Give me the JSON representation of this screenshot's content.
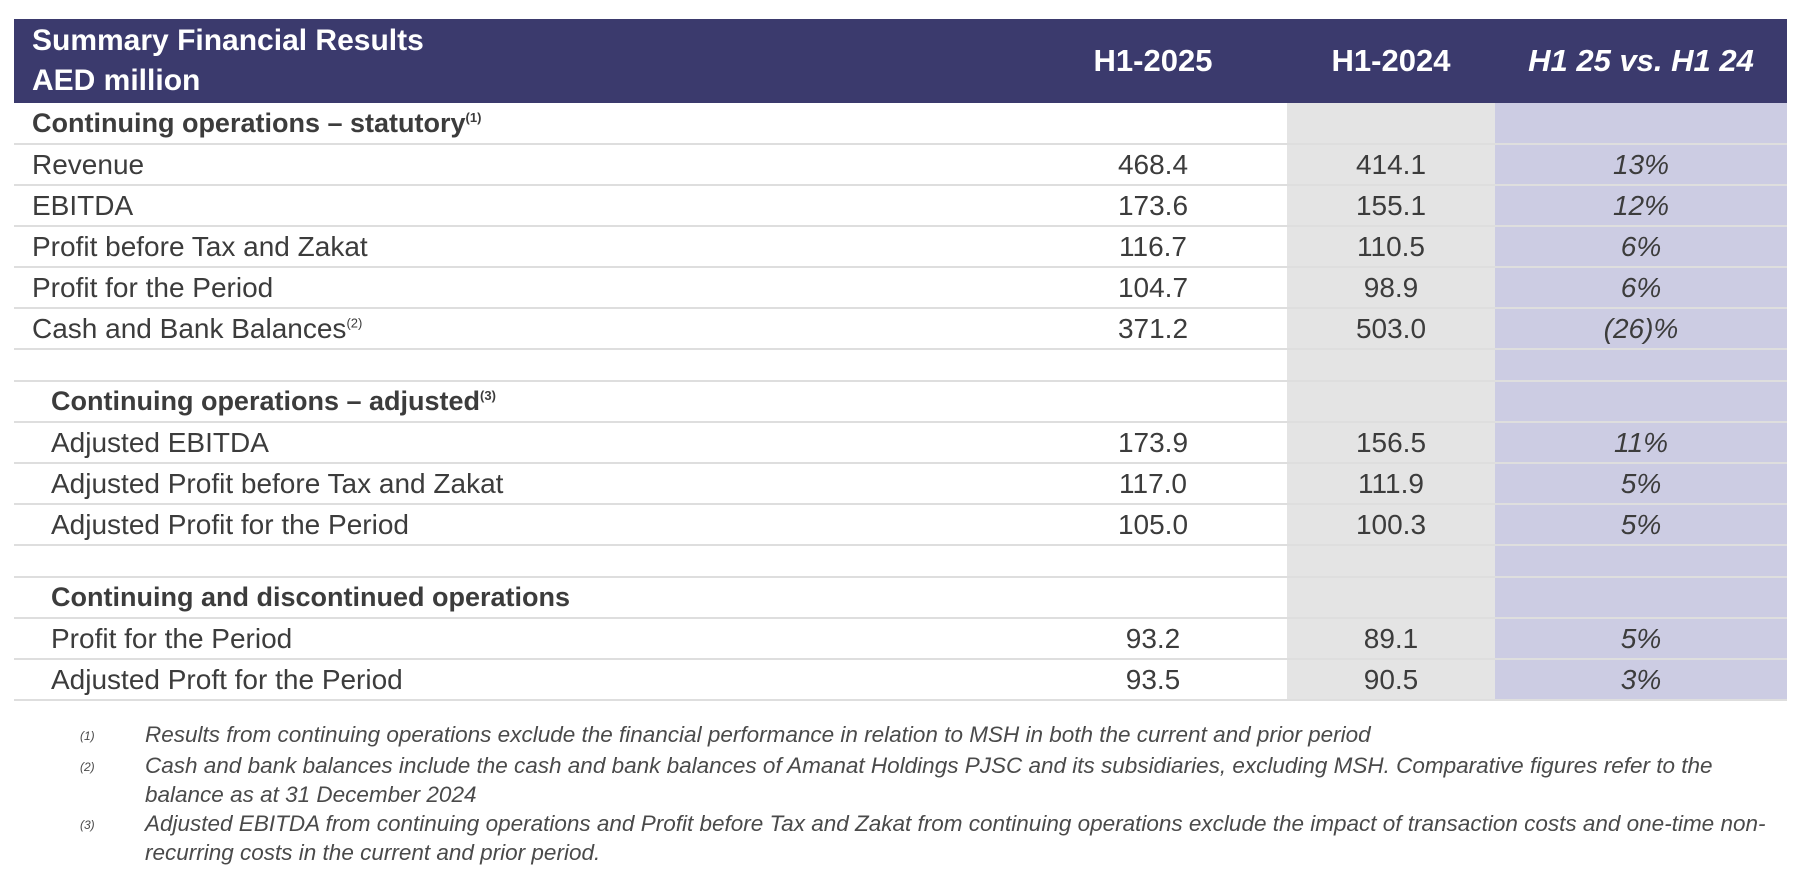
{
  "header": {
    "title_line1": "Summary Financial Results",
    "title_line2": "AED million",
    "col_h1_2025": "H1-2025",
    "col_h1_2024": "H1-2024",
    "col_variance": "H1 25 vs. H1 24"
  },
  "sections": {
    "statutory": {
      "title": "Continuing operations – statutory",
      "note_ref": "(1)",
      "rows": [
        {
          "label": "Revenue",
          "h1_2025": "468.4",
          "h1_2024": "414.1",
          "variance": "13%"
        },
        {
          "label": "EBITDA",
          "h1_2025": "173.6",
          "h1_2024": "155.1",
          "variance": "12%"
        },
        {
          "label": "Profit before Tax and Zakat",
          "h1_2025": "116.7",
          "h1_2024": "110.5",
          "variance": "6%"
        },
        {
          "label": "Profit for the Period",
          "h1_2025": "104.7",
          "h1_2024": "98.9",
          "variance": "6%"
        },
        {
          "label": "Cash and Bank Balances",
          "note_ref": "(2)",
          "h1_2025": "371.2",
          "h1_2024": "503.0",
          "variance": "(26)%"
        }
      ]
    },
    "adjusted": {
      "title": "Continuing operations – adjusted",
      "note_ref": "(3)",
      "rows": [
        {
          "label": "Adjusted EBITDA",
          "h1_2025": "173.9",
          "h1_2024": "156.5",
          "variance": "11%"
        },
        {
          "label": "Adjusted Profit before Tax and Zakat",
          "h1_2025": "117.0",
          "h1_2024": "111.9",
          "variance": "5%"
        },
        {
          "label": "Adjusted Profit for the Period",
          "h1_2025": "105.0",
          "h1_2024": "100.3",
          "variance": "5%"
        }
      ]
    },
    "combined": {
      "title": "Continuing and discontinued operations",
      "rows": [
        {
          "label": "Profit for the Period",
          "h1_2025": "93.2",
          "h1_2024": "89.1",
          "variance": "5%"
        },
        {
          "label": "Adjusted Proft for the Period",
          "h1_2025": "93.5",
          "h1_2024": "90.5",
          "variance": "3%"
        }
      ]
    }
  },
  "footnotes": [
    {
      "mark": "(1)",
      "text": "Results from continuing operations exclude the financial performance in relation to MSH in both the current and prior period"
    },
    {
      "mark": "(2)",
      "text": "Cash and bank balances include the cash and bank balances of Amanat Holdings PJSC and its subsidiaries, excluding MSH. Comparative figures refer to the balance as at 31 December 2024"
    },
    {
      "mark": "(3)",
      "text": "Adjusted EBITDA from continuing operations and Profit before Tax and Zakat from continuing operations exclude the impact of transaction costs and one-time non-recurring costs in the current and prior period."
    }
  ],
  "colors": {
    "header_bg": "#3b3a6d",
    "h1_2024_column_bg": "#e4e4e4",
    "variance_column_bg": "#cccce3"
  }
}
